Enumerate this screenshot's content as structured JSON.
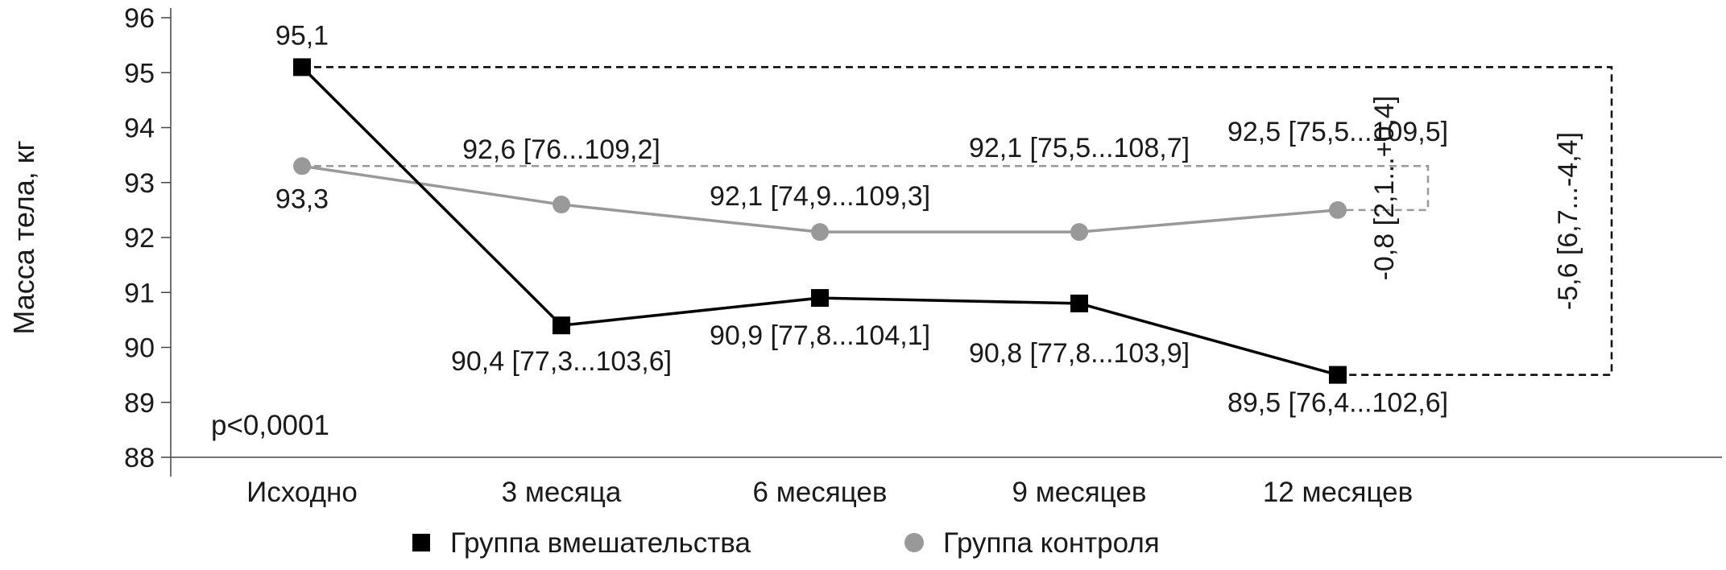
{
  "chart_data": {
    "type": "line",
    "ylabel": "Масса тела, кг",
    "ylim": [
      88,
      96
    ],
    "yticks": [
      88,
      89,
      90,
      91,
      92,
      93,
      94,
      95,
      96
    ],
    "categories": [
      "Исходно",
      "3 месяца",
      "6 месяцев",
      "9 месяцев",
      "12 месяцев"
    ],
    "series": [
      {
        "name": "Группа вмешательства",
        "marker": "square",
        "color": "#000000",
        "values": [
          95.1,
          90.4,
          90.9,
          90.8,
          89.5
        ],
        "labels": [
          "95,1",
          "90,4 [77,3...103,6]",
          "90,9 [77,8...104,1]",
          "90,8 [77,8...103,9]",
          "89,5 [76,4...102,6]"
        ]
      },
      {
        "name": "Группа контроля",
        "marker": "circle",
        "color": "#999999",
        "values": [
          93.3,
          92.6,
          92.1,
          92.1,
          92.5
        ],
        "labels": [
          "93,3",
          "92,6 [76...109,2]",
          "92,1 [74,9...109,3]",
          "92,1 [75,5...108,7]",
          "92,5 [75,5...109,5]"
        ]
      }
    ],
    "change_annotations": [
      {
        "series": "Группа контроля",
        "text": "-0,8 [2,1...+0,4]",
        "style": "dashed-bracket",
        "color": "#999999"
      },
      {
        "series": "Группа вмешательства",
        "text": "-5,6 [6,7...-4,4]",
        "style": "dashed-bracket",
        "color": "#000000"
      }
    ],
    "annotation": "p<0,0001",
    "legend": "bottom-center",
    "grid": false
  }
}
